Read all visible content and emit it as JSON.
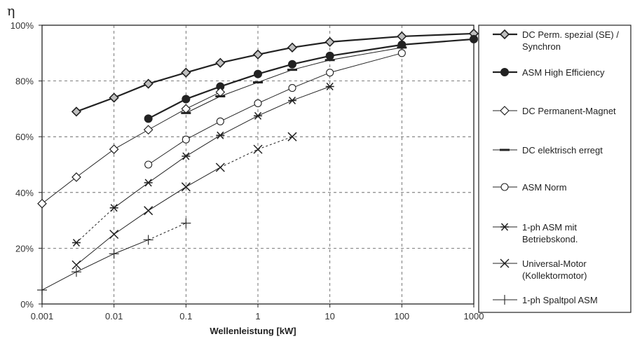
{
  "chart_data": {
    "type": "line",
    "y_axis_symbol": "η",
    "xlabel": "Wellenleistung [kW]",
    "ylabel": "",
    "xscale": "log",
    "xlim": [
      0.001,
      1000
    ],
    "ylim": [
      0,
      100
    ],
    "x_ticks": [
      "0.001",
      "0.01",
      "0.1",
      "1",
      "10",
      "100",
      "1000"
    ],
    "y_ticks": [
      "0%",
      "20%",
      "40%",
      "60%",
      "80%",
      "100%"
    ],
    "grid": "dashed",
    "legend_position": "right",
    "series": [
      {
        "name": "DC Perm. spezial (SE) / Synchron",
        "legend_lines": [
          "DC Perm. spezial (SE) /",
          "Synchron"
        ],
        "marker": "diamond",
        "bold": true,
        "dashed_until": 0,
        "x": [
          0.003,
          0.01,
          0.03,
          0.1,
          0.3,
          1,
          3,
          10,
          100,
          1000
        ],
        "y": [
          69,
          74,
          79,
          83,
          86.5,
          89.5,
          92,
          94,
          96,
          97
        ]
      },
      {
        "name": "ASM High Efficiency",
        "legend_lines": [
          "ASM High Efficiency"
        ],
        "marker": "filled-circle",
        "bold": true,
        "dashed_until": 0,
        "x": [
          0.03,
          0.1,
          0.3,
          1,
          3,
          10,
          100,
          1000
        ],
        "y": [
          66.5,
          73.5,
          78,
          82.5,
          86,
          89,
          93,
          95
        ]
      },
      {
        "name": "DC Permanent-Magnet",
        "legend_lines": [
          "DC Permanent-Magnet"
        ],
        "marker": "diamond",
        "bold": false,
        "dashed_until": 0,
        "x": [
          0.001,
          0.003,
          0.01,
          0.03,
          0.1,
          0.3
        ],
        "y": [
          36,
          45.5,
          55.5,
          62.5,
          70,
          76
        ]
      },
      {
        "name": "DC elektrisch erregt",
        "legend_lines": [
          "DC elektrisch erregt"
        ],
        "marker": "dash",
        "bold": false,
        "dashed_until": 0,
        "x": [
          0.1,
          0.3,
          1,
          3,
          10,
          100
        ],
        "y": [
          68.5,
          74.5,
          79.5,
          84,
          87.5,
          92
        ]
      },
      {
        "name": "ASM Norm",
        "legend_lines": [
          "ASM Norm"
        ],
        "marker": "open-circle",
        "bold": false,
        "dashed_until": 0,
        "x": [
          0.03,
          0.1,
          0.3,
          1,
          3,
          10,
          100
        ],
        "y": [
          50,
          59,
          65.5,
          72,
          77.5,
          83,
          90
        ]
      },
      {
        "name": "1-ph ASM mit Betriebskond.",
        "legend_lines": [
          "1-ph ASM mit",
          "Betriebskond."
        ],
        "marker": "asterisk",
        "bold": false,
        "dashed_until": 1,
        "x": [
          0.003,
          0.01,
          0.03,
          0.1,
          0.3,
          1,
          3,
          10
        ],
        "y": [
          22,
          34.5,
          43.5,
          53,
          60.5,
          67.5,
          73,
          78
        ]
      },
      {
        "name": "Universal-Motor (Kollektormotor)",
        "legend_lines": [
          "Universal-Motor",
          "(Kollektormotor)"
        ],
        "marker": "x",
        "bold": false,
        "dashed_until": 6,
        "x": [
          0.003,
          0.01,
          0.03,
          0.1,
          0.3,
          1,
          3
        ],
        "y": [
          14,
          25,
          33.5,
          42,
          49,
          55.5,
          60
        ]
      },
      {
        "name": "1-ph Spaltpol ASM",
        "legend_lines": [
          "1-ph Spaltpol ASM"
        ],
        "marker": "plus",
        "bold": false,
        "dashed_until": 3,
        "x": [
          0.001,
          0.003,
          0.01,
          0.03,
          0.1
        ],
        "y": [
          5,
          11.5,
          18,
          23,
          29
        ]
      }
    ]
  }
}
